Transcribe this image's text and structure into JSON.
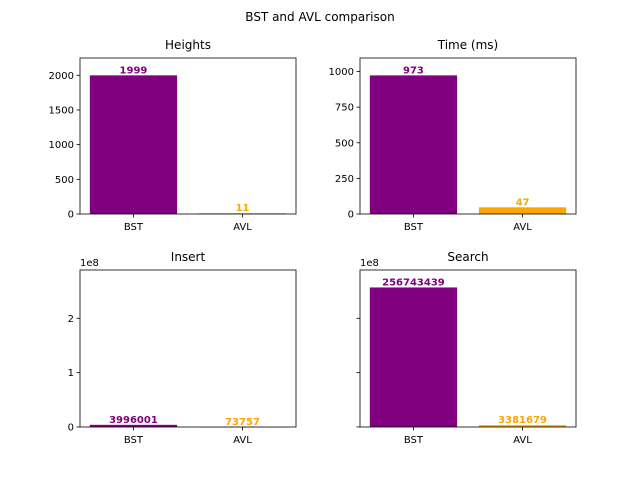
{
  "figure": {
    "title": "BST and AVL comparison"
  },
  "colors": {
    "BST": "#800080",
    "AVL": "#FFA500"
  },
  "chart_data": [
    {
      "type": "bar",
      "title": "Heights",
      "categories": [
        "BST",
        "AVL"
      ],
      "values": [
        1999,
        11
      ],
      "value_labels": [
        "1999",
        "11"
      ],
      "ylim": [
        0,
        2249
      ],
      "yticks": [
        0,
        500,
        1000,
        1500,
        2000
      ],
      "ytick_labels": [
        "0",
        "500",
        "1000",
        "1500",
        "2000"
      ],
      "offset_text": "",
      "show_ytick_labels": true
    },
    {
      "type": "bar",
      "title": "Time (ms)",
      "categories": [
        "BST",
        "AVL"
      ],
      "values": [
        973,
        47
      ],
      "value_labels": [
        "973",
        "47"
      ],
      "ylim": [
        0,
        1095
      ],
      "yticks": [
        0,
        250,
        500,
        750,
        1000
      ],
      "ytick_labels": [
        "0",
        "250",
        "500",
        "750",
        "1000"
      ],
      "offset_text": "",
      "show_ytick_labels": true
    },
    {
      "type": "bar",
      "title": "Insert",
      "categories": [
        "BST",
        "AVL"
      ],
      "values": [
        3996001,
        73757
      ],
      "value_labels": [
        "3996001",
        "73757"
      ],
      "ylim": [
        0,
        288836369
      ],
      "yticks": [
        0,
        100000000,
        200000000
      ],
      "ytick_labels": [
        "0",
        "1",
        "2"
      ],
      "offset_text": "1e8",
      "show_ytick_labels": true
    },
    {
      "type": "bar",
      "title": "Search",
      "categories": [
        "BST",
        "AVL"
      ],
      "values": [
        256743439,
        3381679
      ],
      "value_labels": [
        "256743439",
        "3381679"
      ],
      "ylim": [
        0,
        288836369
      ],
      "yticks": [
        0,
        100000000,
        200000000
      ],
      "ytick_labels": [
        "",
        "",
        ""
      ],
      "offset_text": "1e8",
      "show_ytick_labels": false
    }
  ]
}
